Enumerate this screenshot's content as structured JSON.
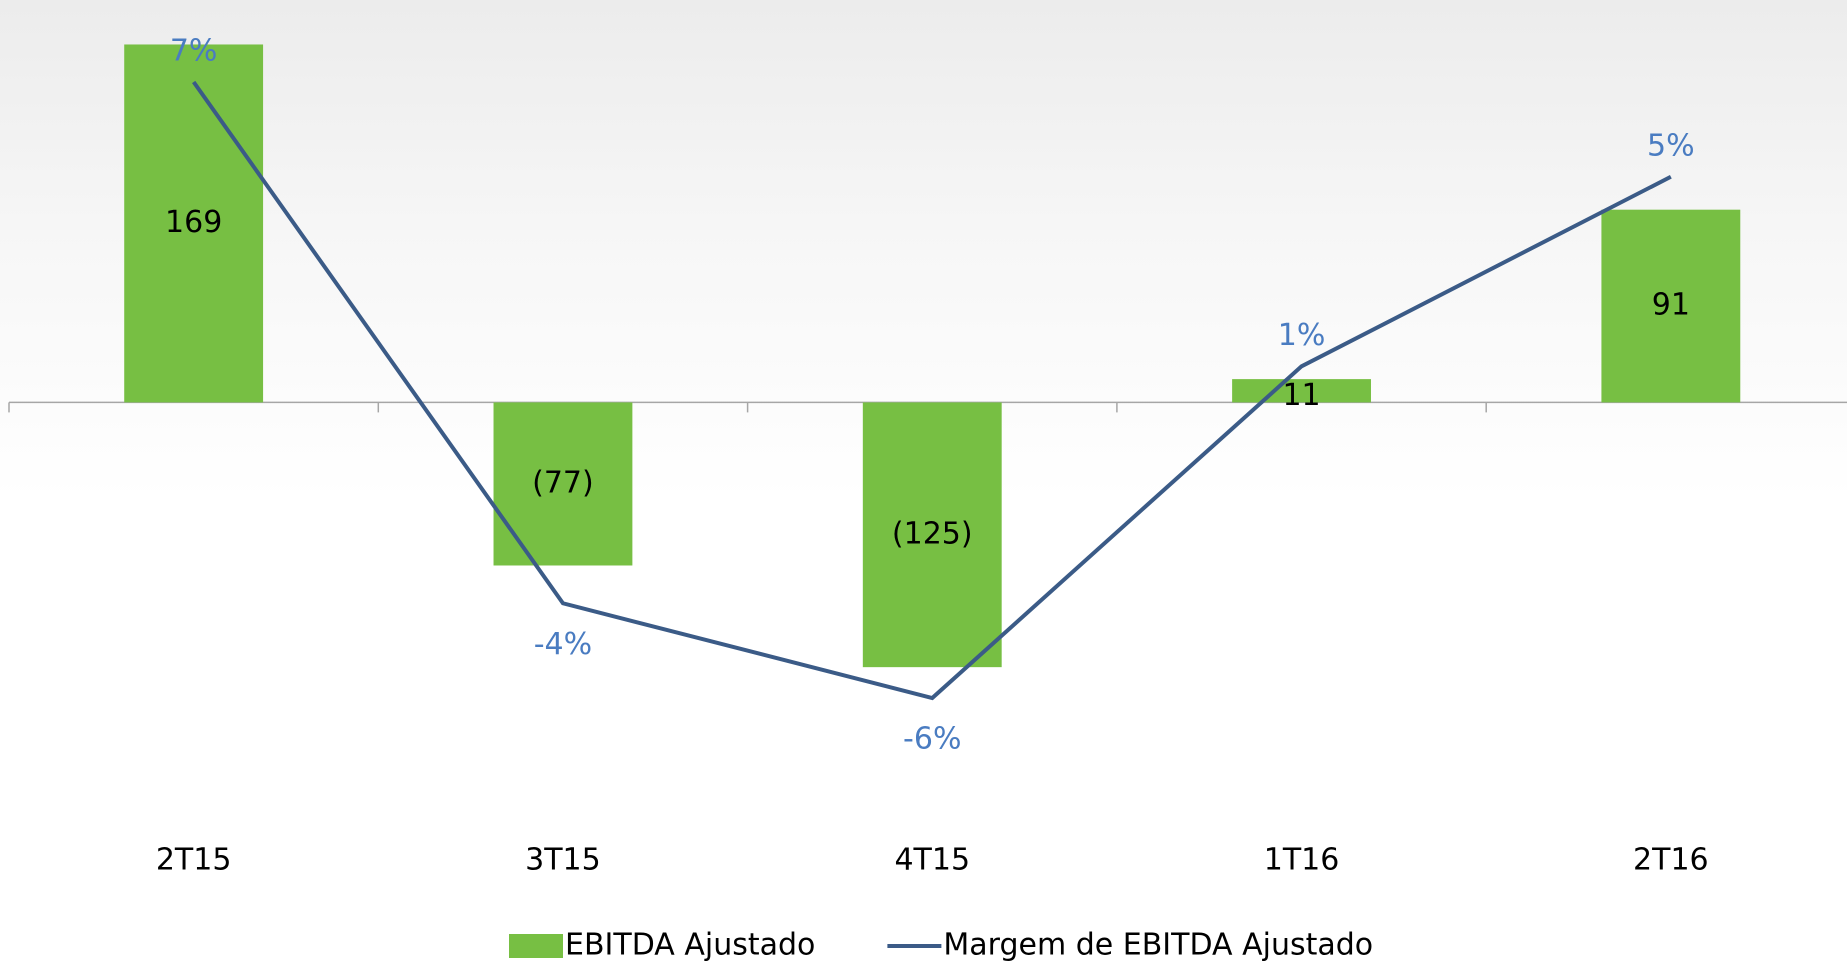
{
  "chart_data": {
    "type": "bar",
    "categories": [
      "2T15",
      "3T15",
      "4T15",
      "1T16",
      "2T16"
    ],
    "series": [
      {
        "name": "EBITDA Ajustado",
        "type": "bar",
        "color": "#77bf43",
        "values": [
          169,
          -77,
          -125,
          11,
          91
        ],
        "value_labels": [
          "169",
          "(77)",
          "(125)",
          "11",
          "91"
        ]
      },
      {
        "name": "Margem de EBITDA Ajustado",
        "type": "line",
        "axis": "y2",
        "color": "#3b5b87",
        "values": [
          7,
          -4,
          -6,
          1,
          5
        ],
        "value_labels": [
          "7%",
          "-4%",
          "-6%",
          "1%",
          "5%"
        ]
      }
    ],
    "ylim": [
      -200,
      190
    ],
    "y2lim": [
      -8.7,
      8.73
    ],
    "legend": "bottom"
  }
}
